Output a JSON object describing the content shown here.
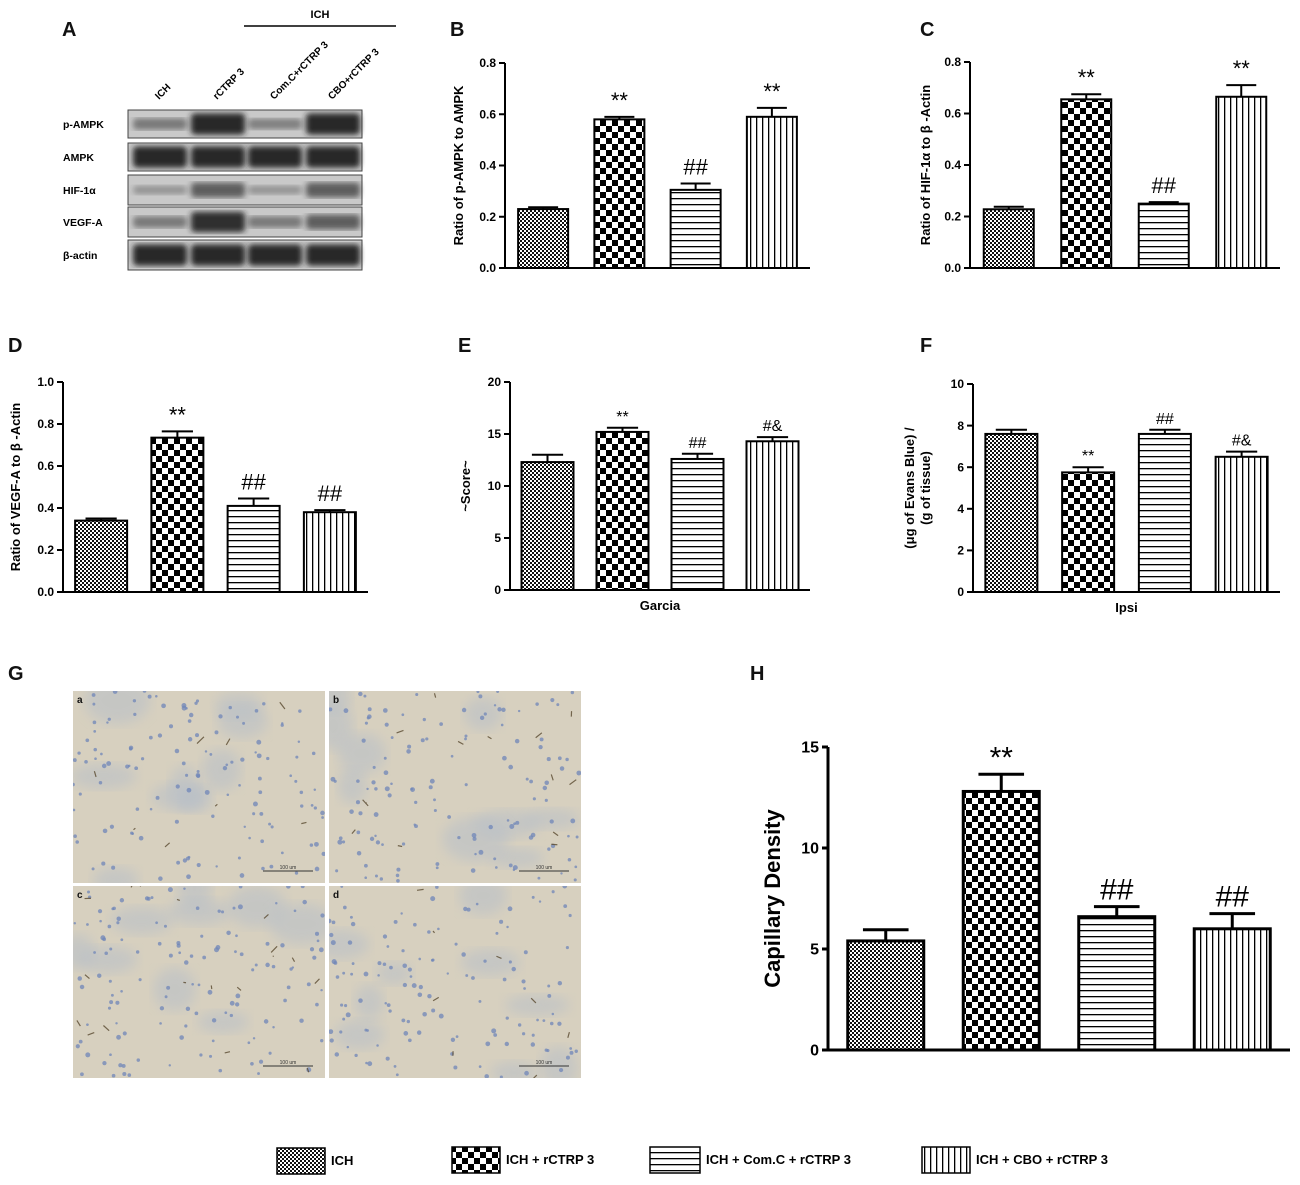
{
  "panel_labels": [
    "A",
    "B",
    "C",
    "D",
    "E",
    "F",
    "G",
    "H"
  ],
  "western_blot": {
    "group_header": "ICH",
    "lane_labels": [
      "ICH",
      "rCTRP 3",
      "Com.C+rCTRP 3",
      "CBO+rCTRP 3"
    ],
    "rows": [
      {
        "label": "p-AMPK",
        "intensity": [
          0.35,
          0.95,
          0.3,
          0.95
        ]
      },
      {
        "label": "AMPK",
        "intensity": [
          0.95,
          0.95,
          0.95,
          0.95
        ]
      },
      {
        "label": "HIF-1α",
        "intensity": [
          0.15,
          0.55,
          0.15,
          0.55
        ]
      },
      {
        "label": "VEGF-A",
        "intensity": [
          0.35,
          0.9,
          0.35,
          0.55
        ]
      },
      {
        "label": "β-actin",
        "intensity": [
          0.95,
          0.95,
          0.95,
          0.95
        ]
      }
    ]
  },
  "histology": {
    "sub_labels": [
      "a",
      "b",
      "c",
      "d"
    ],
    "scale_label": "100 um"
  },
  "colors": {
    "ink": "#000000",
    "tissue": "#d7d0bf",
    "nuclei": "#6f86b8",
    "blot": "#202020",
    "blot_bg": "#c9c9c9"
  },
  "legend": [
    {
      "label": "ICH",
      "pattern": "dense-check"
    },
    {
      "label": "ICH + rCTRP 3",
      "pattern": "checker"
    },
    {
      "label": "ICH + Com.C + rCTRP 3",
      "pattern": "horizontal"
    },
    {
      "label": "ICH + CBO + rCTRP 3",
      "pattern": "vertical"
    }
  ],
  "chart_data": [
    {
      "panel": "B",
      "type": "bar",
      "ylabel": "Ratio of p-AMPK to AMPK",
      "xlabel": "",
      "ylim": [
        0,
        0.8
      ],
      "yticks": [
        "0.0",
        "0.2",
        "0.4",
        "0.6",
        "0.8"
      ],
      "values": [
        0.23,
        0.58,
        0.305,
        0.59
      ],
      "errors": [
        0.007,
        0.01,
        0.025,
        0.035
      ],
      "annotations": [
        "",
        "**",
        "##",
        "**"
      ]
    },
    {
      "panel": "C",
      "type": "bar",
      "ylabel": "Ratio of HIF-1α  to β -Actin",
      "xlabel": "",
      "ylim": [
        0,
        0.8
      ],
      "yticks": [
        "0.0",
        "0.2",
        "0.4",
        "0.6",
        "0.8"
      ],
      "values": [
        0.228,
        0.655,
        0.25,
        0.665
      ],
      "errors": [
        0.01,
        0.02,
        0.006,
        0.045
      ],
      "annotations": [
        "",
        "**",
        "##",
        "**"
      ]
    },
    {
      "panel": "D",
      "type": "bar",
      "ylabel": "Ratio of VEGF-A to β -Actin",
      "xlabel": "",
      "ylim": [
        0,
        1.0
      ],
      "yticks": [
        "0.0",
        "0.2",
        "0.4",
        "0.6",
        "0.8",
        "1.0"
      ],
      "values": [
        0.34,
        0.735,
        0.41,
        0.38
      ],
      "errors": [
        0.01,
        0.03,
        0.035,
        0.01
      ],
      "annotations": [
        "",
        "**",
        "##",
        "##"
      ]
    },
    {
      "panel": "E",
      "type": "bar",
      "ylabel": "~Score~",
      "xlabel": "Garcia",
      "ylim": [
        0,
        20
      ],
      "yticks": [
        "0",
        "5",
        "10",
        "15",
        "20"
      ],
      "values": [
        12.3,
        15.2,
        12.6,
        14.3
      ],
      "errors": [
        0.7,
        0.4,
        0.5,
        0.4
      ],
      "annotations": [
        "",
        "**",
        "##",
        "#&"
      ]
    },
    {
      "panel": "F",
      "type": "bar",
      "ylabel": "(μg of Evans Blue) /|(g of tissue)",
      "xlabel": "Ipsi",
      "ylim": [
        0,
        10
      ],
      "yticks": [
        "0",
        "2",
        "4",
        "6",
        "8",
        "10"
      ],
      "values": [
        7.6,
        5.75,
        7.6,
        6.5
      ],
      "errors": [
        0.2,
        0.25,
        0.2,
        0.25
      ],
      "annotations": [
        "",
        "**",
        "##",
        "#&"
      ]
    },
    {
      "panel": "H",
      "type": "bar",
      "ylabel": "Capillary Density",
      "xlabel": "",
      "ylim": [
        0,
        15
      ],
      "yticks": [
        "0",
        "5",
        "10",
        "15"
      ],
      "values": [
        5.4,
        12.8,
        6.6,
        6.0
      ],
      "errors": [
        0.55,
        0.85,
        0.5,
        0.75
      ],
      "annotations": [
        "",
        "**",
        "##",
        "##"
      ]
    }
  ]
}
